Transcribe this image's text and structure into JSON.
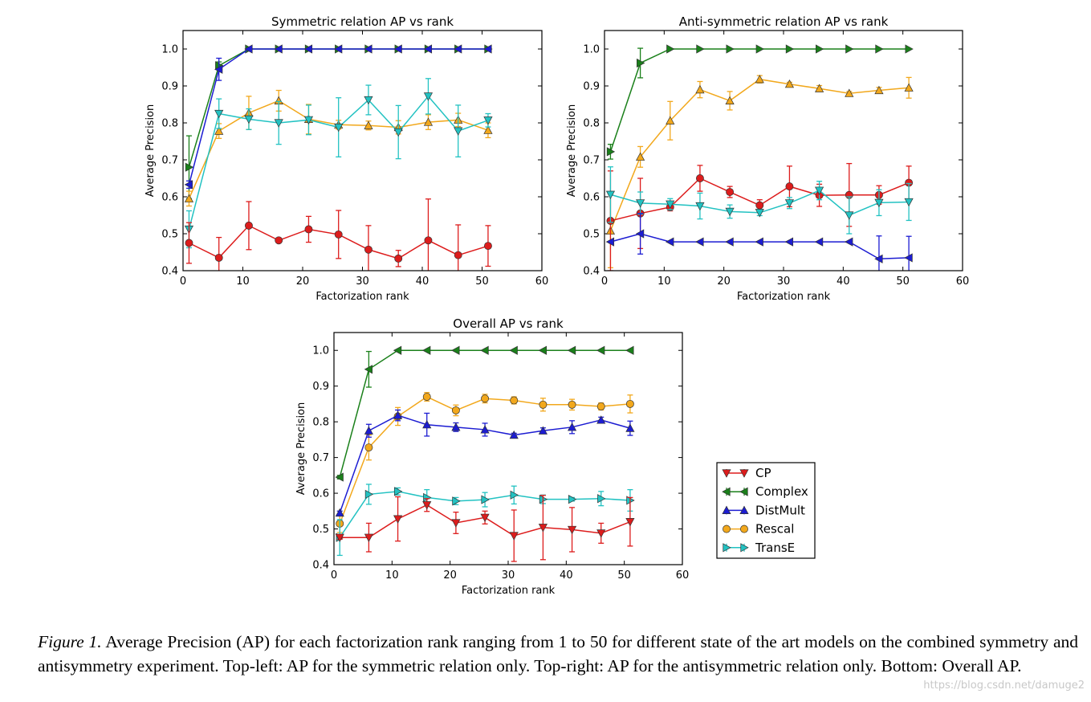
{
  "legend": {
    "entries": [
      {
        "key": "CP",
        "label": "CP",
        "color": "#dd1c1c",
        "marker": "tri-down"
      },
      {
        "key": "Complex",
        "label": "Complex",
        "color": "#1a801a",
        "marker": "tri-left"
      },
      {
        "key": "DistMult",
        "label": "DistMult",
        "color": "#1c1cd2",
        "marker": "tri-up"
      },
      {
        "key": "Rescal",
        "label": "Rescal",
        "color": "#f2a81c",
        "marker": "circle"
      },
      {
        "key": "TransE",
        "label": "TransE",
        "color": "#22c2c2",
        "marker": "tri-right"
      }
    ]
  },
  "chart_data": [
    {
      "type": "line",
      "title": "Symmetric relation AP vs rank",
      "xlabel": "Factorization rank",
      "ylabel": "Average Precision",
      "xlim": [
        0,
        60
      ],
      "ylim": [
        0.4,
        1.05
      ],
      "xticks": [
        0,
        10,
        20,
        30,
        40,
        50,
        60
      ],
      "yticks": [
        0.4,
        0.5,
        0.6,
        0.7,
        0.8,
        0.9,
        1.0
      ],
      "x": [
        1,
        6,
        11,
        16,
        21,
        26,
        31,
        36,
        41,
        46,
        51
      ],
      "series": [
        {
          "name": "Complex",
          "marker": "tri-right",
          "values": [
            0.68,
            0.955,
            1.0,
            1.0,
            1.0,
            1.0,
            1.0,
            1.0,
            1.0,
            1.0,
            1.0
          ],
          "errors": [
            0.085,
            0.01,
            0,
            0,
            0,
            0,
            0,
            0,
            0,
            0,
            0
          ]
        },
        {
          "name": "DistMult",
          "marker": "tri-left",
          "values": [
            0.633,
            0.945,
            1.0,
            1.0,
            1.0,
            1.0,
            1.0,
            1.0,
            1.0,
            1.0,
            1.0
          ],
          "errors": [
            0.01,
            0.03,
            0,
            0,
            0,
            0,
            0,
            0,
            0,
            0,
            0
          ]
        },
        {
          "name": "Rescal",
          "marker": "tri-up",
          "values": [
            0.595,
            0.778,
            0.827,
            0.86,
            0.81,
            0.795,
            0.793,
            0.788,
            0.802,
            0.808,
            0.78
          ],
          "errors": [
            0.02,
            0.02,
            0.045,
            0.028,
            0.04,
            0.012,
            0.012,
            0.018,
            0.02,
            0.018,
            0.02
          ]
        },
        {
          "name": "TransE",
          "marker": "tri-down",
          "values": [
            0.512,
            0.825,
            0.81,
            0.8,
            0.808,
            0.788,
            0.862,
            0.775,
            0.872,
            0.778,
            0.807
          ],
          "errors": [
            0.05,
            0.04,
            0.028,
            0.058,
            0.04,
            0.08,
            0.04,
            0.072,
            0.048,
            0.07,
            0.018
          ]
        },
        {
          "name": "CP",
          "marker": "circle",
          "values": [
            0.475,
            0.435,
            0.522,
            0.482,
            0.512,
            0.498,
            0.457,
            0.433,
            0.482,
            0.442,
            0.467
          ],
          "errors": [
            0.055,
            0.055,
            0.065,
            0.0,
            0.035,
            0.065,
            0.065,
            0.022,
            0.112,
            0.082,
            0.055
          ]
        }
      ]
    },
    {
      "type": "line",
      "title": "Anti-symmetric relation AP vs rank",
      "xlabel": "Factorization rank",
      "ylabel": "Average Precision",
      "xlim": [
        0,
        60
      ],
      "ylim": [
        0.4,
        1.05
      ],
      "xticks": [
        0,
        10,
        20,
        30,
        40,
        50,
        60
      ],
      "yticks": [
        0.4,
        0.5,
        0.6,
        0.7,
        0.8,
        0.9,
        1.0
      ],
      "x": [
        1,
        6,
        11,
        16,
        21,
        26,
        31,
        36,
        41,
        46,
        51
      ],
      "series": [
        {
          "name": "Complex",
          "marker": "tri-right",
          "values": [
            0.722,
            0.962,
            1.0,
            1.0,
            1.0,
            1.0,
            1.0,
            1.0,
            1.0,
            1.0,
            1.0
          ],
          "errors": [
            0.02,
            0.04,
            0,
            0,
            0,
            0,
            0,
            0,
            0,
            0,
            0
          ]
        },
        {
          "name": "Rescal",
          "marker": "tri-up",
          "values": [
            0.508,
            0.708,
            0.806,
            0.89,
            0.86,
            0.918,
            0.905,
            0.893,
            0.88,
            0.888,
            0.895
          ],
          "errors": [
            0.1,
            0.028,
            0.052,
            0.022,
            0.025,
            0.01,
            0.005,
            0.008,
            0.005,
            0.008,
            0.028
          ]
        },
        {
          "name": "CP",
          "marker": "circle",
          "values": [
            0.535,
            0.555,
            0.572,
            0.65,
            0.613,
            0.577,
            0.628,
            0.604,
            0.605,
            0.605,
            0.638
          ],
          "errors": [
            0.135,
            0.095,
            0.01,
            0.035,
            0.015,
            0.015,
            0.055,
            0.03,
            0.085,
            0.025,
            0.045
          ]
        },
        {
          "name": "TransE",
          "marker": "tri-down",
          "values": [
            0.606,
            0.583,
            0.58,
            0.575,
            0.56,
            0.557,
            0.583,
            0.617,
            0.55,
            0.584,
            0.586
          ],
          "errors": [
            0.075,
            0.03,
            0.015,
            0.035,
            0.018,
            0.008,
            0.015,
            0.025,
            0.05,
            0.035,
            0.05
          ]
        },
        {
          "name": "DistMult",
          "marker": "tri-left",
          "values": [
            0.478,
            0.5,
            0.478,
            0.478,
            0.478,
            0.478,
            0.478,
            0.478,
            0.478,
            0.432,
            0.435
          ],
          "errors": [
            0,
            0.055,
            0,
            0,
            0,
            0,
            0,
            0,
            0,
            0.062,
            0.058
          ]
        }
      ]
    },
    {
      "type": "line",
      "title": "Overall AP vs rank",
      "xlabel": "Factorization rank",
      "ylabel": "Average Precision",
      "xlim": [
        0,
        60
      ],
      "ylim": [
        0.4,
        1.05
      ],
      "xticks": [
        0,
        10,
        20,
        30,
        40,
        50,
        60
      ],
      "yticks": [
        0.4,
        0.5,
        0.6,
        0.7,
        0.8,
        0.9,
        1.0
      ],
      "x": [
        1,
        6,
        11,
        16,
        21,
        26,
        31,
        36,
        41,
        46,
        51
      ],
      "series": [
        {
          "name": "Complex",
          "marker": "tri-left",
          "values": [
            0.645,
            0.947,
            1.0,
            1.0,
            1.0,
            1.0,
            1.0,
            1.0,
            1.0,
            1.0,
            1.0
          ],
          "errors": [
            0.005,
            0.05,
            0,
            0,
            0,
            0,
            0,
            0,
            0,
            0,
            0
          ]
        },
        {
          "name": "Rescal",
          "marker": "circle",
          "values": [
            0.515,
            0.728,
            0.815,
            0.87,
            0.832,
            0.865,
            0.86,
            0.848,
            0.848,
            0.843,
            0.85
          ],
          "errors": [
            0.025,
            0.035,
            0.025,
            0.012,
            0.015,
            0.012,
            0.01,
            0.018,
            0.015,
            0.01,
            0.025
          ]
        },
        {
          "name": "DistMult",
          "marker": "tri-up",
          "values": [
            0.545,
            0.775,
            0.818,
            0.792,
            0.785,
            0.778,
            0.763,
            0.775,
            0.785,
            0.805,
            0.782
          ],
          "errors": [
            0.005,
            0.018,
            0.015,
            0.032,
            0.012,
            0.018,
            0.005,
            0.008,
            0.018,
            0.008,
            0.02
          ]
        },
        {
          "name": "TransE",
          "marker": "tri-right",
          "values": [
            0.476,
            0.597,
            0.605,
            0.588,
            0.578,
            0.582,
            0.595,
            0.583,
            0.583,
            0.585,
            0.58
          ],
          "errors": [
            0.05,
            0.028,
            0.01,
            0.022,
            0.01,
            0.02,
            0.025,
            0.012,
            0.005,
            0.02,
            0.03
          ]
        },
        {
          "name": "CP",
          "marker": "tri-down",
          "values": [
            0.476,
            0.476,
            0.528,
            0.567,
            0.517,
            0.532,
            0.481,
            0.504,
            0.498,
            0.488,
            0.52
          ],
          "errors": [
            0.005,
            0.04,
            0.062,
            0.018,
            0.03,
            0.018,
            0.072,
            0.09,
            0.062,
            0.028,
            0.068
          ]
        }
      ]
    }
  ],
  "caption": {
    "label": "Figure 1.",
    "text": " Average Precision (AP) for each factorization rank ranging from 1 to 50 for different state of the art models on the combined symmetry and antisymmetry experiment. Top-left: AP for the symmetric relation only. Top-right: AP for the antisymmetric relation only. Bottom: Overall AP."
  },
  "watermark": "https://blog.csdn.net/damuge2"
}
